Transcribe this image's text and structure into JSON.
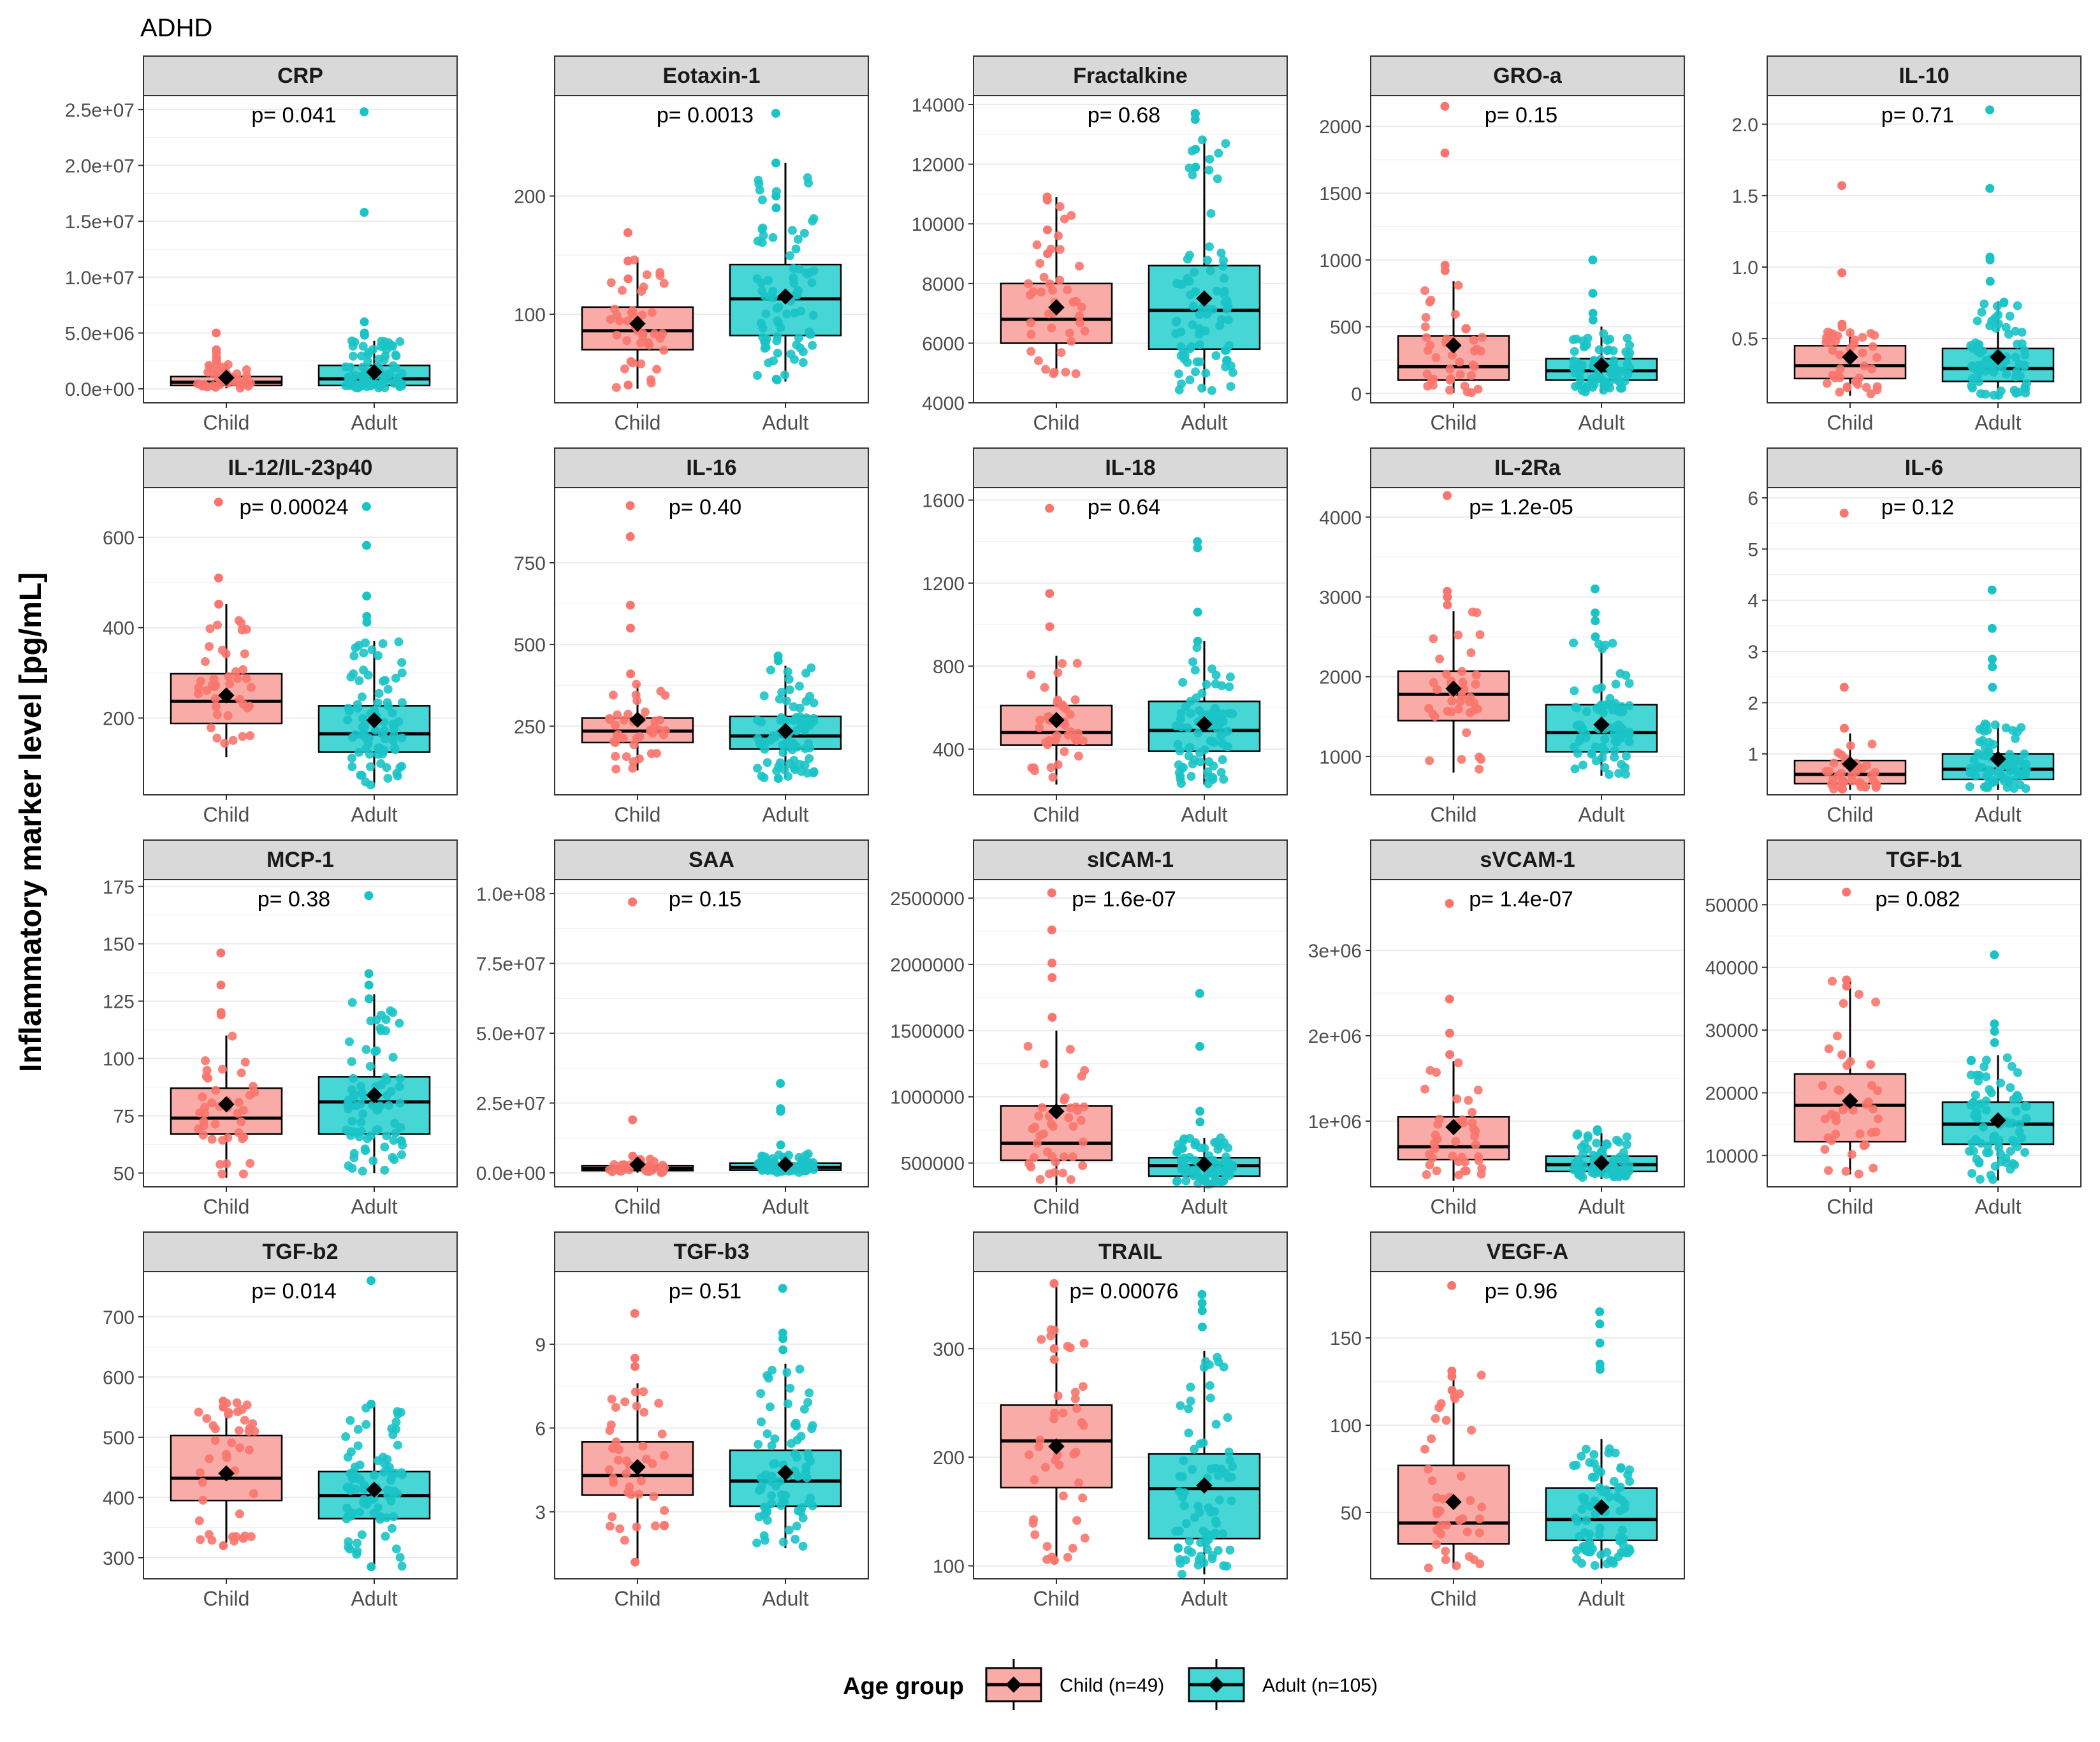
{
  "figure_title": "ADHD",
  "y_axis_label": "Inflammatory marker level [pg/mL]",
  "legend": {
    "title": "Age group",
    "entries": [
      {
        "label": "Child (n=49)",
        "color": "#F8766D",
        "fill": "#F9ACA7"
      },
      {
        "label": "Adult (n=105)",
        "color": "#00BFC4",
        "fill": "#46D6D6"
      }
    ]
  },
  "colors": {
    "child_point": "#F8766D",
    "child_box": "#F9ACA7",
    "adult_point": "#19C3C6",
    "adult_box": "#46D6D6",
    "strip": "#D9D9D9",
    "grid": "#EBEBEB"
  },
  "chart_data": [
    {
      "type": "box",
      "title": "CRP",
      "pvalue": "p= 0.041",
      "categories": [
        "Child",
        "Adult"
      ],
      "ylim": [
        -1250000,
        26250000
      ],
      "ticks": [
        0,
        5000000,
        10000000,
        15000000,
        20000000,
        25000000
      ],
      "tick_labels": [
        "0.0e+00",
        "5.0e+06",
        "1.0e+07",
        "1.5e+07",
        "2.0e+07",
        "2.5e+07"
      ],
      "child": {
        "q1": 300000,
        "median": 600000,
        "q3": 1100000,
        "whisker_low": 50000,
        "whisker_high": 2200000,
        "mean": 1000000,
        "points": [
          5000000,
          3500000,
          3200000,
          2800000,
          2500000
        ]
      },
      "adult": {
        "q1": 300000,
        "median": 900000,
        "q3": 2100000,
        "whisker_low": 50000,
        "whisker_high": 4300000,
        "mean": 1500000,
        "points": [
          24800000,
          15800000,
          6000000,
          5000000,
          4800000
        ]
      }
    },
    {
      "type": "box",
      "title": "Eotaxin-1",
      "pvalue": "p= 0.0013",
      "categories": [
        "Child",
        "Adult"
      ],
      "ylim": [
        25,
        285
      ],
      "ticks": [
        100,
        200
      ],
      "tick_labels": [
        "100",
        "200"
      ],
      "child": {
        "q1": 70,
        "median": 86,
        "q3": 106,
        "whisker_low": 37,
        "whisker_high": 148,
        "mean": 92,
        "points": [
          169,
          145,
          130,
          40
        ]
      },
      "adult": {
        "q1": 82,
        "median": 113,
        "q3": 142,
        "whisker_low": 43,
        "whisker_high": 228,
        "mean": 115,
        "points": [
          270,
          228,
          200,
          190,
          45
        ]
      }
    },
    {
      "type": "box",
      "title": "Fractalkine",
      "pvalue": "p= 0.68",
      "categories": [
        "Child",
        "Adult"
      ],
      "ylim": [
        4000,
        14300
      ],
      "ticks": [
        4000,
        6000,
        8000,
        10000,
        12000,
        14000
      ],
      "tick_labels": [
        "4000",
        "6000",
        "8000",
        "10000",
        "12000",
        "14000"
      ],
      "child": {
        "q1": 6000,
        "median": 6800,
        "q3": 8000,
        "whisker_low": 4900,
        "whisker_high": 10900,
        "mean": 7200,
        "points": [
          10900,
          10800,
          9800,
          9000
        ]
      },
      "adult": {
        "q1": 5800,
        "median": 7100,
        "q3": 8600,
        "whisker_low": 4400,
        "whisker_high": 12900,
        "mean": 7500,
        "points": [
          13700,
          13500,
          13700,
          12500,
          11900
        ]
      }
    },
    {
      "type": "box",
      "title": "GRO-a",
      "pvalue": "p= 0.15",
      "categories": [
        "Child",
        "Adult"
      ],
      "ylim": [
        -70,
        2230
      ],
      "ticks": [
        0,
        500,
        1000,
        1500,
        2000
      ],
      "tick_labels": [
        "0",
        "500",
        "1000",
        "1500",
        "2000"
      ],
      "child": {
        "q1": 100,
        "median": 200,
        "q3": 430,
        "whisker_low": 5,
        "whisker_high": 840,
        "mean": 360,
        "points": [
          2150,
          1800,
          960,
          920
        ]
      },
      "adult": {
        "q1": 100,
        "median": 170,
        "q3": 260,
        "whisker_low": 5,
        "whisker_high": 500,
        "mean": 210,
        "points": [
          1000,
          750,
          600,
          550
        ]
      }
    },
    {
      "type": "box",
      "title": "IL-10",
      "pvalue": "p= 0.71",
      "categories": [
        "Child",
        "Adult"
      ],
      "ylim": [
        0.05,
        2.2
      ],
      "ticks": [
        0.5,
        1.0,
        1.5,
        2.0
      ],
      "tick_labels": [
        "0.5",
        "1.0",
        "1.5",
        "2.0"
      ],
      "child": {
        "q1": 0.22,
        "median": 0.31,
        "q3": 0.45,
        "whisker_low": 0.1,
        "whisker_high": 0.55,
        "mean": 0.37,
        "points": [
          1.57,
          0.96,
          0.6,
          0.58
        ]
      },
      "adult": {
        "q1": 0.2,
        "median": 0.29,
        "q3": 0.43,
        "whisker_low": 0.08,
        "whisker_high": 0.76,
        "mean": 0.37,
        "points": [
          2.1,
          1.55,
          1.07,
          1.05,
          0.9
        ]
      }
    },
    {
      "type": "box",
      "title": "IL-12/IL-23p40",
      "pvalue": "p= 0.00024",
      "categories": [
        "Child",
        "Adult"
      ],
      "ylim": [
        30,
        710
      ],
      "ticks": [
        200,
        400,
        600
      ],
      "tick_labels": [
        "200",
        "400",
        "600"
      ],
      "child": {
        "q1": 188,
        "median": 237,
        "q3": 298,
        "whisker_low": 113,
        "whisker_high": 452,
        "mean": 250,
        "points": [
          678,
          510,
          452
        ]
      },
      "adult": {
        "q1": 125,
        "median": 165,
        "q3": 227,
        "whisker_low": 48,
        "whisker_high": 370,
        "mean": 195,
        "points": [
          668,
          582,
          470,
          425,
          412
        ]
      }
    },
    {
      "type": "box",
      "title": "IL-16",
      "pvalue": "p= 0.40",
      "categories": [
        "Child",
        "Adult"
      ],
      "ylim": [
        40,
        980
      ],
      "ticks": [
        250,
        500,
        750
      ],
      "tick_labels": [
        "250",
        "500",
        "750"
      ],
      "child": {
        "q1": 200,
        "median": 235,
        "q3": 275,
        "whisker_low": 115,
        "whisker_high": 380,
        "mean": 270,
        "points": [
          925,
          830,
          620,
          550,
          410
        ]
      },
      "adult": {
        "q1": 180,
        "median": 220,
        "q3": 280,
        "whisker_low": 90,
        "whisker_high": 435,
        "mean": 235,
        "points": [
          465,
          450,
          90
        ]
      }
    },
    {
      "type": "box",
      "title": "IL-18",
      "pvalue": "p= 0.64",
      "categories": [
        "Child",
        "Adult"
      ],
      "ylim": [
        180,
        1660
      ],
      "ticks": [
        400,
        800,
        1200,
        1600
      ],
      "tick_labels": [
        "400",
        "800",
        "1200",
        "1600"
      ],
      "child": {
        "q1": 420,
        "median": 480,
        "q3": 610,
        "whisker_low": 230,
        "whisker_high": 850,
        "mean": 540,
        "points": [
          1560,
          1150,
          990
        ]
      },
      "adult": {
        "q1": 390,
        "median": 490,
        "q3": 630,
        "whisker_low": 230,
        "whisker_high": 920,
        "mean": 520,
        "points": [
          1400,
          1370,
          1060,
          920
        ]
      }
    },
    {
      "type": "box",
      "title": "IL-2Ra",
      "pvalue": "p= 1.2e-05",
      "categories": [
        "Child",
        "Adult"
      ],
      "ylim": [
        520,
        4370
      ],
      "ticks": [
        1000,
        2000,
        3000,
        4000
      ],
      "tick_labels": [
        "1000",
        "2000",
        "3000",
        "4000"
      ],
      "child": {
        "q1": 1450,
        "median": 1780,
        "q3": 2070,
        "whisker_low": 800,
        "whisker_high": 2820,
        "mean": 1850,
        "points": [
          4270,
          3070,
          3000,
          2900
        ]
      },
      "adult": {
        "q1": 1060,
        "median": 1300,
        "q3": 1650,
        "whisker_low": 760,
        "whisker_high": 2430,
        "mean": 1400,
        "points": [
          3100,
          2800,
          2700,
          2500
        ]
      }
    },
    {
      "type": "box",
      "title": "IL-6",
      "pvalue": "p= 0.12",
      "categories": [
        "Child",
        "Adult"
      ],
      "ylim": [
        0.2,
        6.2
      ],
      "ticks": [
        1,
        2,
        3,
        4,
        5,
        6
      ],
      "tick_labels": [
        "1",
        "2",
        "3",
        "4",
        "5",
        "6"
      ],
      "child": {
        "q1": 0.42,
        "median": 0.6,
        "q3": 0.87,
        "whisker_low": 0.3,
        "whisker_high": 1.4,
        "mean": 0.8,
        "points": [
          5.7,
          2.3,
          1.5
        ]
      },
      "adult": {
        "q1": 0.5,
        "median": 0.7,
        "q3": 1.0,
        "whisker_low": 0.3,
        "whisker_high": 1.6,
        "mean": 0.9,
        "points": [
          4.2,
          3.45,
          2.85,
          2.7,
          2.3
        ]
      }
    },
    {
      "type": "box",
      "title": "MCP-1",
      "pvalue": "p= 0.38",
      "categories": [
        "Child",
        "Adult"
      ],
      "ylim": [
        44,
        178
      ],
      "ticks": [
        50,
        75,
        100,
        125,
        150,
        175
      ],
      "tick_labels": [
        "50",
        "75",
        "100",
        "125",
        "150",
        "175"
      ],
      "child": {
        "q1": 67,
        "median": 74,
        "q3": 87,
        "whisker_low": 48,
        "whisker_high": 110,
        "mean": 80,
        "points": [
          146,
          132,
          120,
          119
        ]
      },
      "adult": {
        "q1": 67,
        "median": 81,
        "q3": 92,
        "whisker_low": 50,
        "whisker_high": 128,
        "mean": 84,
        "points": [
          171,
          137,
          132,
          126
        ]
      }
    },
    {
      "type": "box",
      "title": "SAA",
      "pvalue": "p= 0.15",
      "categories": [
        "Child",
        "Adult"
      ],
      "ylim": [
        -5000000,
        105000000
      ],
      "ticks": [
        0,
        25000000,
        50000000,
        75000000,
        100000000
      ],
      "tick_labels": [
        "0.0e+00",
        "2.5e+07",
        "5.0e+07",
        "7.5e+07",
        "1.0e+08"
      ],
      "child": {
        "q1": 800000,
        "median": 1500000,
        "q3": 2500000,
        "whisker_low": 100000,
        "whisker_high": 5000000,
        "mean": 3000000,
        "points": [
          97000000,
          19000000,
          6000000
        ]
      },
      "adult": {
        "q1": 1000000,
        "median": 2000000,
        "q3": 3500000,
        "whisker_low": 100000,
        "whisker_high": 7000000,
        "mean": 3000000,
        "points": [
          32000000,
          23000000,
          22000000,
          10000000
        ]
      }
    },
    {
      "type": "box",
      "title": "sICAM-1",
      "pvalue": "p= 1.6e-07",
      "categories": [
        "Child",
        "Adult"
      ],
      "ylim": [
        320000,
        2640000
      ],
      "ticks": [
        500000,
        1000000,
        1500000,
        2000000,
        2500000
      ],
      "tick_labels": [
        "500000",
        "1000000",
        "1500000",
        "2000000",
        "2500000"
      ],
      "child": {
        "q1": 520000,
        "median": 650000,
        "q3": 930000,
        "whisker_low": 330000,
        "whisker_high": 1500000,
        "mean": 890000,
        "points": [
          2540000,
          2260000,
          2010000,
          1900000,
          1600000
        ]
      },
      "adult": {
        "q1": 400000,
        "median": 480000,
        "q3": 540000,
        "whisker_low": 340000,
        "whisker_high": 690000,
        "mean": 490000,
        "points": [
          1780000,
          1380000,
          890000,
          810000
        ]
      }
    },
    {
      "type": "box",
      "title": "sVCAM-1",
      "pvalue": "p= 1.4e-07",
      "categories": [
        "Child",
        "Adult"
      ],
      "ylim": [
        230000,
        3830000
      ],
      "ticks": [
        1000000,
        2000000,
        3000000
      ],
      "tick_labels": [
        "1e+06",
        "2e+06",
        "3e+06"
      ],
      "child": {
        "q1": 550000,
        "median": 700000,
        "q3": 1050000,
        "whisker_low": 300000,
        "whisker_high": 1700000,
        "mean": 930000,
        "points": [
          3550000,
          2430000,
          2030000,
          1780000
        ]
      },
      "adult": {
        "q1": 410000,
        "median": 490000,
        "q3": 590000,
        "whisker_low": 320000,
        "whisker_high": 860000,
        "mean": 510000,
        "points": [
          900000,
          880000
        ]
      }
    },
    {
      "type": "box",
      "title": "TGF-b1",
      "pvalue": "p= 0.082",
      "categories": [
        "Child",
        "Adult"
      ],
      "ylim": [
        5000,
        54000
      ],
      "ticks": [
        10000,
        20000,
        30000,
        40000,
        50000
      ],
      "tick_labels": [
        "10000",
        "20000",
        "30000",
        "40000",
        "50000"
      ],
      "child": {
        "q1": 12200,
        "median": 18000,
        "q3": 23000,
        "whisker_low": 7000,
        "whisker_high": 38000,
        "mean": 18700,
        "points": [
          52000,
          38000,
          37000
        ]
      },
      "adult": {
        "q1": 11800,
        "median": 15000,
        "q3": 18500,
        "whisker_low": 6000,
        "whisker_high": 26000,
        "mean": 15600,
        "points": [
          42000,
          31000,
          29800,
          28000
        ]
      }
    },
    {
      "type": "box",
      "title": "TGF-b2",
      "pvalue": "p= 0.014",
      "categories": [
        "Child",
        "Adult"
      ],
      "ylim": [
        265,
        775
      ],
      "ticks": [
        300,
        400,
        500,
        600,
        700
      ],
      "tick_labels": [
        "300",
        "400",
        "500",
        "600",
        "700"
      ],
      "child": {
        "q1": 395,
        "median": 432,
        "q3": 503,
        "whisker_low": 325,
        "whisker_high": 560,
        "mean": 440,
        "points": [
          560,
          550,
          320
        ]
      },
      "adult": {
        "q1": 365,
        "median": 403,
        "q3": 443,
        "whisker_low": 285,
        "whisker_high": 552,
        "mean": 413,
        "points": [
          760,
          555,
          285
        ]
      }
    },
    {
      "type": "box",
      "title": "TGF-b3",
      "pvalue": "p= 0.51",
      "categories": [
        "Child",
        "Adult"
      ],
      "ylim": [
        0.6,
        11.6
      ],
      "ticks": [
        3,
        6,
        9
      ],
      "tick_labels": [
        "3",
        "6",
        "9"
      ],
      "child": {
        "q1": 3.6,
        "median": 4.3,
        "q3": 5.5,
        "whisker_low": 1.2,
        "whisker_high": 7.6,
        "mean": 4.6,
        "points": [
          10.1,
          8.5,
          8.2,
          1.2
        ]
      },
      "adult": {
        "q1": 3.2,
        "median": 4.1,
        "q3": 5.2,
        "whisker_low": 1.7,
        "whisker_high": 8.3,
        "mean": 4.4,
        "points": [
          11.0,
          9.4,
          9.2,
          8.8
        ]
      }
    },
    {
      "type": "box",
      "title": "TRAIL",
      "pvalue": "p= 0.00076",
      "categories": [
        "Child",
        "Adult"
      ],
      "ylim": [
        88,
        371
      ],
      "ticks": [
        100,
        200,
        300
      ],
      "tick_labels": [
        "100",
        "200",
        "300"
      ],
      "child": {
        "q1": 172,
        "median": 215,
        "q3": 248,
        "whisker_low": 105,
        "whisker_high": 360,
        "mean": 210,
        "points": [
          360,
          300,
          290,
          105
        ]
      },
      "adult": {
        "q1": 125,
        "median": 171,
        "q3": 203,
        "whisker_low": 92,
        "whisker_high": 298,
        "mean": 174,
        "points": [
          350,
          342,
          335,
          320
        ]
      }
    },
    {
      "type": "box",
      "title": "VEGF-A",
      "pvalue": "p= 0.96",
      "categories": [
        "Child",
        "Adult"
      ],
      "ylim": [
        12,
        188
      ],
      "ticks": [
        50,
        100,
        150
      ],
      "tick_labels": [
        "50",
        "100",
        "150"
      ],
      "child": {
        "q1": 32,
        "median": 44,
        "q3": 77,
        "whisker_low": 18,
        "whisker_high": 131,
        "mean": 56,
        "points": [
          180,
          131,
          128,
          120
        ]
      },
      "adult": {
        "q1": 34,
        "median": 46,
        "q3": 64,
        "whisker_low": 18,
        "whisker_high": 92,
        "mean": 53,
        "points": [
          165,
          158,
          147,
          135,
          132
        ]
      }
    }
  ]
}
